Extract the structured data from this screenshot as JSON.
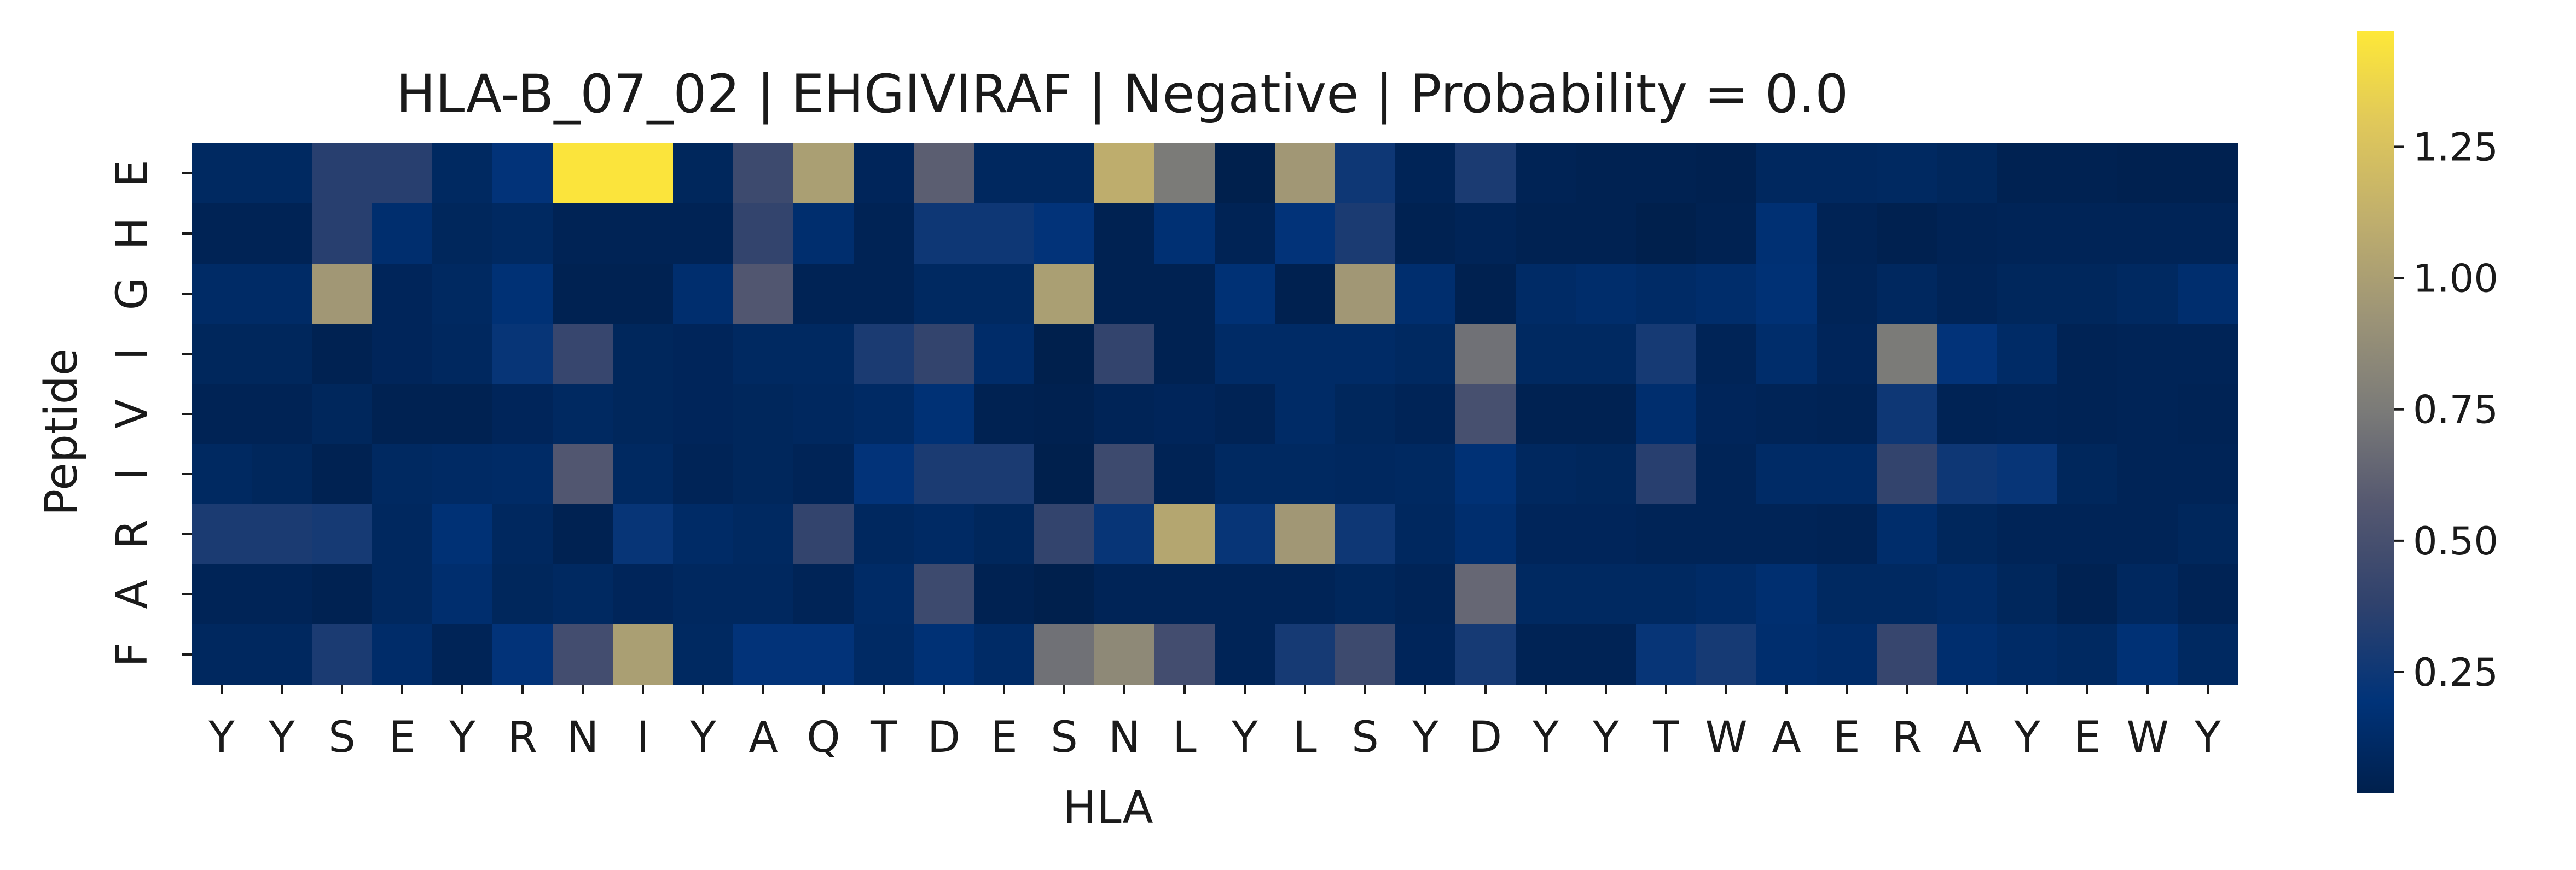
{
  "chart_data": {
    "type": "heatmap",
    "title": "HLA-B_07_02 | EHGIVIRAF | Negative | Probability = 0.0",
    "xlabel": "HLA",
    "ylabel": "Peptide",
    "x_categories": [
      "Y",
      "Y",
      "S",
      "E",
      "Y",
      "R",
      "N",
      "I",
      "Y",
      "A",
      "Q",
      "T",
      "D",
      "E",
      "S",
      "N",
      "L",
      "Y",
      "L",
      "S",
      "Y",
      "D",
      "Y",
      "Y",
      "T",
      "W",
      "A",
      "E",
      "R",
      "A",
      "Y",
      "E",
      "W",
      "Y"
    ],
    "y_categories": [
      "E",
      "H",
      "G",
      "I",
      "V",
      "I",
      "R",
      "A",
      "F"
    ],
    "values": [
      [
        0.1,
        0.1,
        0.35,
        0.35,
        0.1,
        0.2,
        1.45,
        1.45,
        0.08,
        0.45,
        1.0,
        0.07,
        0.6,
        0.09,
        0.09,
        1.1,
        0.75,
        0.02,
        0.95,
        0.25,
        0.06,
        0.3,
        0.05,
        0.04,
        0.04,
        0.03,
        0.09,
        0.09,
        0.1,
        0.08,
        0.04,
        0.04,
        0.03,
        0.03
      ],
      [
        0.05,
        0.05,
        0.35,
        0.15,
        0.08,
        0.1,
        0.05,
        0.05,
        0.05,
        0.4,
        0.15,
        0.05,
        0.25,
        0.25,
        0.2,
        0.04,
        0.17,
        0.05,
        0.2,
        0.3,
        0.04,
        0.06,
        0.04,
        0.04,
        0.02,
        0.04,
        0.17,
        0.05,
        0.03,
        0.05,
        0.06,
        0.06,
        0.06,
        0.06
      ],
      [
        0.12,
        0.12,
        0.95,
        0.07,
        0.1,
        0.18,
        0.04,
        0.04,
        0.15,
        0.55,
        0.05,
        0.05,
        0.1,
        0.1,
        1.0,
        0.04,
        0.04,
        0.18,
        0.03,
        0.95,
        0.15,
        0.03,
        0.12,
        0.14,
        0.12,
        0.14,
        0.18,
        0.06,
        0.09,
        0.06,
        0.08,
        0.08,
        0.1,
        0.15
      ],
      [
        0.08,
        0.08,
        0.04,
        0.07,
        0.09,
        0.22,
        0.42,
        0.08,
        0.07,
        0.1,
        0.1,
        0.3,
        0.4,
        0.13,
        0.02,
        0.4,
        0.04,
        0.12,
        0.12,
        0.12,
        0.1,
        0.7,
        0.1,
        0.1,
        0.28,
        0.06,
        0.14,
        0.07,
        0.75,
        0.2,
        0.12,
        0.05,
        0.06,
        0.06
      ],
      [
        0.05,
        0.05,
        0.08,
        0.04,
        0.04,
        0.07,
        0.1,
        0.08,
        0.07,
        0.08,
        0.09,
        0.11,
        0.18,
        0.04,
        0.03,
        0.06,
        0.07,
        0.05,
        0.12,
        0.08,
        0.06,
        0.5,
        0.04,
        0.04,
        0.15,
        0.07,
        0.06,
        0.05,
        0.25,
        0.05,
        0.06,
        0.05,
        0.06,
        0.05
      ],
      [
        0.1,
        0.08,
        0.04,
        0.1,
        0.11,
        0.12,
        0.55,
        0.1,
        0.06,
        0.08,
        0.06,
        0.2,
        0.3,
        0.3,
        0.02,
        0.45,
        0.05,
        0.1,
        0.1,
        0.09,
        0.1,
        0.18,
        0.09,
        0.08,
        0.35,
        0.06,
        0.12,
        0.12,
        0.4,
        0.25,
        0.22,
        0.08,
        0.06,
        0.06
      ],
      [
        0.3,
        0.3,
        0.28,
        0.09,
        0.18,
        0.09,
        0.04,
        0.22,
        0.12,
        0.1,
        0.4,
        0.09,
        0.11,
        0.08,
        0.4,
        0.22,
        1.05,
        0.22,
        0.95,
        0.25,
        0.09,
        0.15,
        0.07,
        0.07,
        0.06,
        0.06,
        0.06,
        0.05,
        0.14,
        0.08,
        0.06,
        0.06,
        0.06,
        0.08
      ],
      [
        0.06,
        0.06,
        0.04,
        0.09,
        0.15,
        0.08,
        0.1,
        0.07,
        0.09,
        0.09,
        0.06,
        0.12,
        0.45,
        0.04,
        0.02,
        0.06,
        0.06,
        0.06,
        0.06,
        0.08,
        0.06,
        0.65,
        0.1,
        0.1,
        0.1,
        0.12,
        0.16,
        0.1,
        0.1,
        0.12,
        0.08,
        0.04,
        0.09,
        0.05
      ],
      [
        0.09,
        0.09,
        0.3,
        0.13,
        0.06,
        0.2,
        0.48,
        1.0,
        0.1,
        0.2,
        0.2,
        0.11,
        0.18,
        0.12,
        0.7,
        0.85,
        0.48,
        0.06,
        0.28,
        0.45,
        0.07,
        0.28,
        0.05,
        0.05,
        0.22,
        0.28,
        0.15,
        0.13,
        0.42,
        0.15,
        0.12,
        0.1,
        0.18,
        0.1
      ]
    ],
    "colormap": "cividis",
    "colorbar": {
      "ticks": [
        0.25,
        0.5,
        0.75,
        1.0,
        1.25
      ],
      "tick_labels": [
        "0.25",
        "0.50",
        "0.75",
        "1.00",
        "1.25"
      ],
      "range": [
        0.02,
        1.47
      ]
    }
  }
}
